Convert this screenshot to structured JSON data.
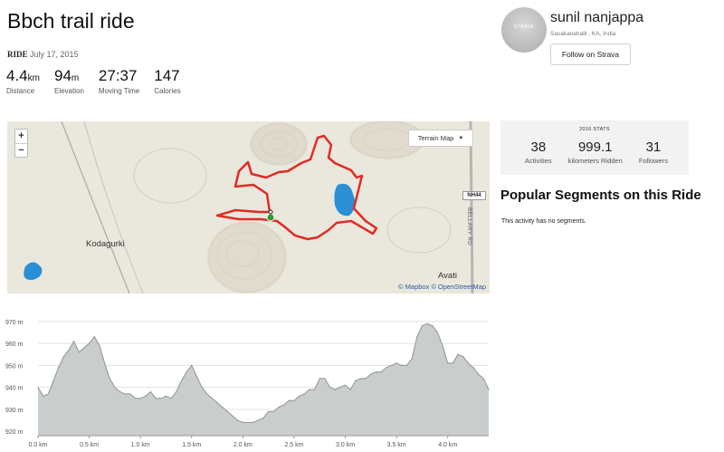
{
  "activity": {
    "title": "Bbch trail ride",
    "type_label": "RIDE",
    "date": "July 17, 2015"
  },
  "stats": [
    {
      "value": "4.4",
      "unit": "km",
      "label": "Distance"
    },
    {
      "value": "94",
      "unit": "m",
      "label": "Elevation"
    },
    {
      "value": "27:37",
      "unit": "",
      "label": "Moving Time"
    },
    {
      "value": "147",
      "unit": "",
      "label": "Calories"
    }
  ],
  "athlete": {
    "name": "sunil nanjappa",
    "location": "Savakanahalli , KA, India",
    "follow_label": "Follow on Strava",
    "avatar_text": "STRAVA"
  },
  "map": {
    "zoom_in": "+",
    "zoom_out": "−",
    "terrain_label": "Terrain Map",
    "places": [
      "Kodagurki",
      "Avati"
    ],
    "highway": "NH44",
    "road": "BELLARY RD",
    "attribution": "© Mapbox © OpenStreetMap",
    "route_color": "#e02b25",
    "water_color": "#2b8fd6"
  },
  "yearly_stats": {
    "heading": "2016 STATS",
    "items": [
      {
        "value": "38",
        "label": "Activities"
      },
      {
        "value": "999.1",
        "label": "kilometers Ridden"
      },
      {
        "value": "31",
        "label": "Followers"
      }
    ]
  },
  "segments": {
    "title": "Popular Segments on this Ride",
    "empty_text": "This activity has no segments."
  },
  "chart_data": {
    "type": "area",
    "x": [
      0.0,
      0.05,
      0.1,
      0.15,
      0.2,
      0.25,
      0.3,
      0.35,
      0.4,
      0.45,
      0.5,
      0.55,
      0.6,
      0.65,
      0.7,
      0.75,
      0.8,
      0.85,
      0.9,
      0.95,
      1.0,
      1.05,
      1.1,
      1.15,
      1.2,
      1.25,
      1.3,
      1.35,
      1.4,
      1.45,
      1.5,
      1.55,
      1.6,
      1.65,
      1.7,
      1.75,
      1.8,
      1.85,
      1.9,
      1.95,
      2.0,
      2.05,
      2.1,
      2.15,
      2.2,
      2.25,
      2.3,
      2.35,
      2.4,
      2.45,
      2.5,
      2.55,
      2.6,
      2.65,
      2.7,
      2.75,
      2.8,
      2.85,
      2.9,
      2.95,
      3.0,
      3.05,
      3.1,
      3.15,
      3.2,
      3.25,
      3.3,
      3.35,
      3.4,
      3.45,
      3.5,
      3.55,
      3.6,
      3.65,
      3.7,
      3.75,
      3.8,
      3.85,
      3.9,
      3.95,
      4.0,
      4.05,
      4.1,
      4.15,
      4.2,
      4.25,
      4.3,
      4.35,
      4.4
    ],
    "y": [
      940,
      936,
      937,
      943,
      949,
      954,
      957,
      961,
      956,
      958,
      960,
      963,
      959,
      951,
      944,
      940,
      938,
      937,
      937,
      935,
      935,
      936,
      938,
      935,
      935,
      936,
      935,
      938,
      943,
      947,
      950,
      945,
      940,
      937,
      935,
      933,
      931,
      929,
      927,
      925,
      924,
      924,
      924,
      925,
      926,
      929,
      929,
      931,
      932,
      934,
      934,
      936,
      937,
      939,
      939,
      944,
      944,
      940,
      939,
      940,
      941,
      939,
      943,
      944,
      944,
      946,
      947,
      947,
      949,
      950,
      951,
      950,
      950,
      953,
      963,
      968,
      969,
      968,
      965,
      959,
      951,
      951,
      955,
      954,
      951,
      949,
      946,
      944,
      939
    ],
    "xlabel": "",
    "ylabel": "",
    "xlim": [
      0,
      4.4
    ],
    "ylim": [
      918,
      972
    ],
    "x_ticks": [
      "0.0 km",
      "0.5 km",
      "1.0 km",
      "1.5 km",
      "2.0 km",
      "2.5 km",
      "3.0 km",
      "3.5 km",
      "4.0 km"
    ],
    "y_ticks": [
      "920 m",
      "930 m",
      "940 m",
      "950 m",
      "960 m",
      "970 m"
    ],
    "fill_color": "#c9cdcc",
    "line_color": "#8f9594",
    "grid": true
  }
}
